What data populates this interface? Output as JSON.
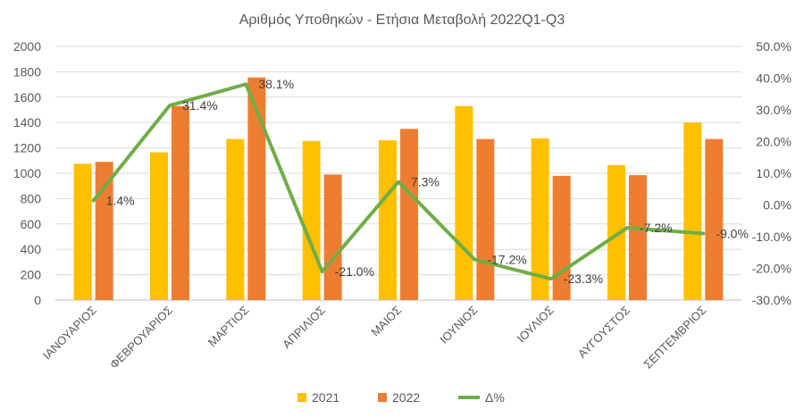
{
  "chart_data": {
    "type": "bar",
    "title": "Αριθμός Υποθηκών - Ετήσια Μεταβολή 2022Q1-Q3",
    "categories": [
      "ΙΑΝΟΥΑΡΙΟΣ",
      "ΦΕΒΡΟΥΑΡΙΟΣ",
      "ΜΑΡΤΙΟΣ",
      "ΑΠΡΙΛΙΟΣ",
      "ΜΑΙΟΣ",
      "ΙΟΥΝΙΟΣ",
      "ΙΟΥΛΙΟΣ",
      "ΑΥΓΟΥΣΤΟΣ",
      "ΣΕΠΤΕΜΒΡΙΟΣ"
    ],
    "series": [
      {
        "name": "2021",
        "type": "bar",
        "axis": "left",
        "color": "#FFC000",
        "values": [
          1075,
          1165,
          1270,
          1255,
          1260,
          1530,
          1275,
          1065,
          1400
        ]
      },
      {
        "name": "2022",
        "type": "bar",
        "axis": "left",
        "color": "#ED7D31",
        "values": [
          1090,
          1530,
          1755,
          990,
          1350,
          1270,
          980,
          985,
          1270
        ]
      },
      {
        "name": "Δ%",
        "type": "line",
        "axis": "right",
        "color": "#70AD47",
        "values": [
          1.4,
          31.4,
          38.1,
          -21.0,
          7.3,
          -17.2,
          -23.3,
          -7.2,
          -9.0
        ],
        "labels": [
          "1.4%",
          "31.4%",
          "38.1%",
          "-21.0%",
          "7.3%",
          "-17.2%",
          "-23.3%",
          "-7.2%",
          "-9.0%"
        ]
      }
    ],
    "y_left": {
      "min": 0,
      "max": 2000,
      "ticks": [
        "0",
        "200",
        "400",
        "600",
        "800",
        "1000",
        "1200",
        "1400",
        "1600",
        "1800",
        "2000"
      ]
    },
    "y_right": {
      "min": -30,
      "max": 50,
      "ticks": [
        "-30.0%",
        "-20.0%",
        "-10.0%",
        "0.0%",
        "10.0%",
        "20.0%",
        "30.0%",
        "40.0%",
        "50.0%"
      ]
    },
    "grid": true,
    "legend_position": "bottom"
  }
}
